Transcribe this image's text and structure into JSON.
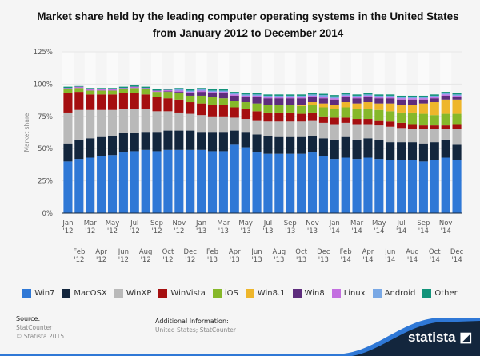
{
  "chart_data": {
    "type": "bar",
    "stacked": true,
    "title": "Market share held by the leading computer operating systems in the United States from January 2012 to December 2014",
    "xlabel": "",
    "ylabel": "Market share",
    "ylim": [
      0,
      125
    ],
    "yticks": [
      "0%",
      "25%",
      "50%",
      "75%",
      "100%",
      "125%"
    ],
    "grid": true,
    "legend_position": "bottom",
    "categories": [
      "Jan '12",
      "Feb '12",
      "Mar '12",
      "Apr '12",
      "May '12",
      "Jun '12",
      "Jul '12",
      "Aug '12",
      "Sep '12",
      "Oct '12",
      "Nov '12",
      "Dec '12",
      "Jan '13",
      "Feb '13",
      "Mar '13",
      "Apr '13",
      "May '13",
      "Jun '13",
      "Jul '13",
      "Aug '13",
      "Sep '13",
      "Oct '13",
      "Nov '13",
      "Dec '13",
      "Jan '14",
      "Feb '14",
      "Mar '14",
      "Apr '14",
      "May '14",
      "Jun '14",
      "Jul '14",
      "Aug '14",
      "Sep '14",
      "Oct '14",
      "Nov '14",
      "Dec '14"
    ],
    "series": [
      {
        "name": "Win7",
        "color": "#2f78d6",
        "values": [
          40,
          42,
          43,
          44,
          45,
          47,
          48,
          49,
          48,
          49,
          49,
          49,
          49,
          48,
          48,
          53,
          51,
          47,
          46,
          46,
          46,
          46,
          47,
          44,
          42,
          43,
          42,
          43,
          42,
          41,
          41,
          41,
          40,
          41,
          43,
          41
        ]
      },
      {
        "name": "MacOSX",
        "color": "#13263d",
        "values": [
          14,
          15,
          15,
          15,
          15,
          15,
          14,
          14,
          15,
          15,
          15,
          15,
          14,
          15,
          15,
          11,
          12,
          14,
          14,
          13,
          13,
          13,
          13,
          14,
          15,
          16,
          15,
          15,
          15,
          14,
          14,
          14,
          14,
          14,
          14,
          12
        ]
      },
      {
        "name": "WinXP",
        "color": "#b9b9b9",
        "values": [
          24,
          23,
          22,
          21,
          20,
          19,
          19,
          18,
          16,
          15,
          14,
          13,
          13,
          12,
          12,
          10,
          10,
          11,
          11,
          12,
          12,
          12,
          12,
          12,
          12,
          11,
          12,
          11,
          11,
          12,
          11,
          10,
          11,
          10,
          8,
          12
        ]
      },
      {
        "name": "WinVista",
        "color": "#a50f10",
        "values": [
          15,
          14,
          12,
          12,
          12,
          12,
          12,
          11,
          11,
          10,
          10,
          9,
          9,
          9,
          9,
          8,
          8,
          7,
          7,
          7,
          7,
          6,
          6,
          5,
          5,
          4,
          4,
          4,
          4,
          4,
          4,
          4,
          3,
          3,
          3,
          4
        ]
      },
      {
        "name": "iOS",
        "color": "#86b82a",
        "values": [
          3,
          3,
          3,
          3,
          3,
          3,
          4,
          4,
          4,
          5,
          5,
          5,
          6,
          6,
          5,
          5,
          5,
          6,
          6,
          6,
          6,
          6,
          6,
          7,
          7,
          8,
          8,
          8,
          8,
          8,
          8,
          9,
          9,
          8,
          9,
          8
        ]
      },
      {
        "name": "Win8.1",
        "color": "#eeb62b",
        "values": [
          0,
          0,
          0,
          0,
          0,
          0,
          0,
          0,
          0,
          0,
          0,
          0,
          0,
          0,
          0,
          0,
          0,
          0,
          0,
          0,
          0,
          1,
          2,
          3,
          3,
          4,
          4,
          5,
          5,
          6,
          6,
          6,
          8,
          10,
          11,
          11
        ]
      },
      {
        "name": "Win8",
        "color": "#5e2d7d",
        "values": [
          0,
          0,
          0,
          0,
          0,
          0,
          0,
          0,
          0,
          0.5,
          1,
          2,
          3,
          3,
          4,
          4,
          4,
          5,
          5,
          5,
          5,
          5,
          4,
          4,
          4,
          4,
          4,
          4,
          4,
          4,
          4,
          4,
          3,
          3,
          3,
          2
        ]
      },
      {
        "name": "Linux",
        "color": "#c36fe0",
        "values": [
          1,
          1,
          1,
          1,
          1,
          1,
          1,
          1,
          1,
          1,
          1,
          1,
          1,
          1,
          1,
          1,
          1,
          1,
          1,
          1,
          1,
          1,
          1,
          1,
          1,
          1,
          1,
          1,
          1,
          1,
          1,
          1,
          1,
          1,
          1,
          1
        ]
      },
      {
        "name": "Android",
        "color": "#79a8e5",
        "values": [
          0,
          0,
          0,
          0,
          0,
          0,
          0,
          0,
          0,
          0,
          1,
          1,
          1,
          1,
          1,
          1,
          1,
          1,
          1,
          1,
          1,
          1,
          1,
          1.5,
          1.5,
          1,
          1,
          1,
          1,
          1,
          1,
          1,
          1,
          1,
          1,
          1
        ]
      },
      {
        "name": "Other",
        "color": "#12937a",
        "values": [
          1,
          0.5,
          1,
          1,
          1,
          1,
          1,
          1,
          1,
          1,
          1,
          1,
          1,
          1,
          1,
          1,
          1,
          1,
          1,
          1,
          1,
          1,
          1,
          1,
          1,
          1,
          1,
          1,
          1,
          1,
          1,
          1,
          1,
          1,
          1,
          1
        ]
      }
    ]
  },
  "footer": {
    "source_label": "Source:",
    "source_lines": [
      "StatCounter",
      "© Statista 2015"
    ],
    "additional_label": "Additional Information:",
    "additional_text": "United States; StatCounter",
    "logo": "statista"
  }
}
